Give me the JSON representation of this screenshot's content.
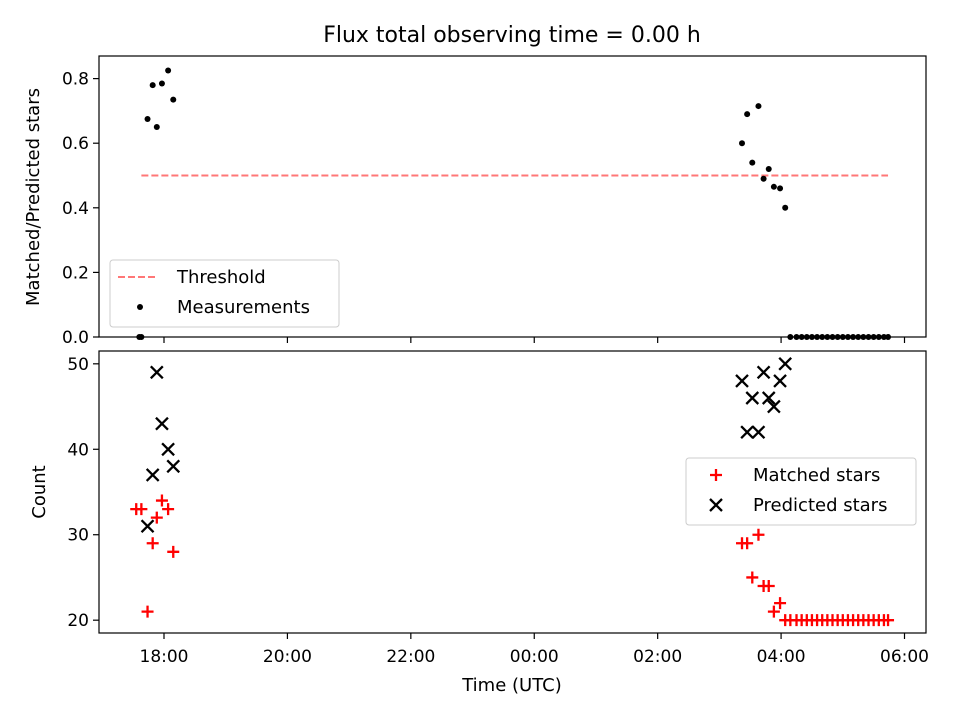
{
  "chart_data": {
    "title": "Flux total observing time = 0.00 h",
    "xlabel": "Time (UTC)",
    "x_tick_labels": [
      "18:00",
      "20:00",
      "22:00",
      "00:00",
      "02:00",
      "04:00",
      "06:00"
    ],
    "colors": {
      "threshold": "#ff7777",
      "measurements": "#000000",
      "matched": "#ff0000",
      "predicted": "#000000"
    },
    "panels": [
      {
        "type": "scatter",
        "ylabel": "Matched/Predicted stars",
        "ylim": [
          0,
          0.87
        ],
        "y_ticks": [
          0.0,
          0.2,
          0.4,
          0.6,
          0.8
        ],
        "y_tick_labels": [
          "0.0",
          "0.2",
          "0.4",
          "0.6",
          "0.8"
        ],
        "legend_position": "lower-left",
        "threshold": {
          "name": "Threshold",
          "value": 0.5,
          "x_range": [
            "17:38",
            "05:44"
          ]
        },
        "series": [
          {
            "name": "Measurements",
            "marker": "dot",
            "points": [
              [
                "17:36",
                0.0
              ],
              [
                "17:38",
                0.0
              ],
              [
                "17:44",
                0.675
              ],
              [
                "17:49",
                0.78
              ],
              [
                "17:53",
                0.65
              ],
              [
                "17:58",
                0.785
              ],
              [
                "18:04",
                0.825
              ],
              [
                "18:09",
                0.735
              ],
              [
                "03:22",
                0.6
              ],
              [
                "03:27",
                0.69
              ],
              [
                "03:32",
                0.54
              ],
              [
                "03:38",
                0.715
              ],
              [
                "03:43",
                0.49
              ],
              [
                "03:48",
                0.52
              ],
              [
                "03:53",
                0.465
              ],
              [
                "03:59",
                0.46
              ],
              [
                "04:04",
                0.4
              ],
              [
                "04:09",
                0.0
              ],
              [
                "04:15",
                0.0
              ],
              [
                "04:20",
                0.0
              ],
              [
                "04:25",
                0.0
              ],
              [
                "04:30",
                0.0
              ],
              [
                "04:35",
                0.0
              ],
              [
                "04:40",
                0.0
              ],
              [
                "04:45",
                0.0
              ],
              [
                "04:50",
                0.0
              ],
              [
                "04:55",
                0.0
              ],
              [
                "05:00",
                0.0
              ],
              [
                "05:05",
                0.0
              ],
              [
                "05:10",
                0.0
              ],
              [
                "05:15",
                0.0
              ],
              [
                "05:20",
                0.0
              ],
              [
                "05:25",
                0.0
              ],
              [
                "05:30",
                0.0
              ],
              [
                "05:35",
                0.0
              ],
              [
                "05:40",
                0.0
              ],
              [
                "05:44",
                0.0
              ]
            ]
          }
        ]
      },
      {
        "type": "scatter",
        "ylabel": "Count",
        "ylim": [
          18.5,
          51.5
        ],
        "y_ticks": [
          20,
          30,
          40,
          50
        ],
        "y_tick_labels": [
          "20",
          "30",
          "40",
          "50"
        ],
        "legend_position": "center-right",
        "series": [
          {
            "name": "Matched stars",
            "marker": "plus",
            "points": [
              [
                "17:33",
                33
              ],
              [
                "17:38",
                33
              ],
              [
                "17:44",
                21
              ],
              [
                "17:49",
                29
              ],
              [
                "17:53",
                32
              ],
              [
                "17:58",
                34
              ],
              [
                "18:04",
                33
              ],
              [
                "18:09",
                28
              ],
              [
                "03:22",
                29
              ],
              [
                "03:27",
                29
              ],
              [
                "03:32",
                25
              ],
              [
                "03:38",
                30
              ],
              [
                "03:43",
                24
              ],
              [
                "03:48",
                24
              ],
              [
                "03:53",
                21
              ],
              [
                "03:59",
                22
              ],
              [
                "04:04",
                20
              ],
              [
                "04:09",
                20
              ],
              [
                "04:15",
                20
              ],
              [
                "04:20",
                20
              ],
              [
                "04:25",
                20
              ],
              [
                "04:30",
                20
              ],
              [
                "04:35",
                20
              ],
              [
                "04:40",
                20
              ],
              [
                "04:45",
                20
              ],
              [
                "04:50",
                20
              ],
              [
                "04:55",
                20
              ],
              [
                "05:00",
                20
              ],
              [
                "05:05",
                20
              ],
              [
                "05:10",
                20
              ],
              [
                "05:15",
                20
              ],
              [
                "05:20",
                20
              ],
              [
                "05:25",
                20
              ],
              [
                "05:30",
                20
              ],
              [
                "05:35",
                20
              ],
              [
                "05:40",
                20
              ],
              [
                "05:44",
                20
              ]
            ]
          },
          {
            "name": "Predicted stars",
            "marker": "x",
            "points": [
              [
                "17:44",
                31
              ],
              [
                "17:49",
                37
              ],
              [
                "17:53",
                49
              ],
              [
                "17:58",
                43
              ],
              [
                "18:04",
                40
              ],
              [
                "18:09",
                38
              ],
              [
                "03:22",
                48
              ],
              [
                "03:27",
                42
              ],
              [
                "03:32",
                46
              ],
              [
                "03:38",
                42
              ],
              [
                "03:43",
                49
              ],
              [
                "03:48",
                46
              ],
              [
                "03:53",
                45
              ],
              [
                "03:59",
                48
              ],
              [
                "04:04",
                50
              ]
            ]
          }
        ]
      }
    ]
  }
}
